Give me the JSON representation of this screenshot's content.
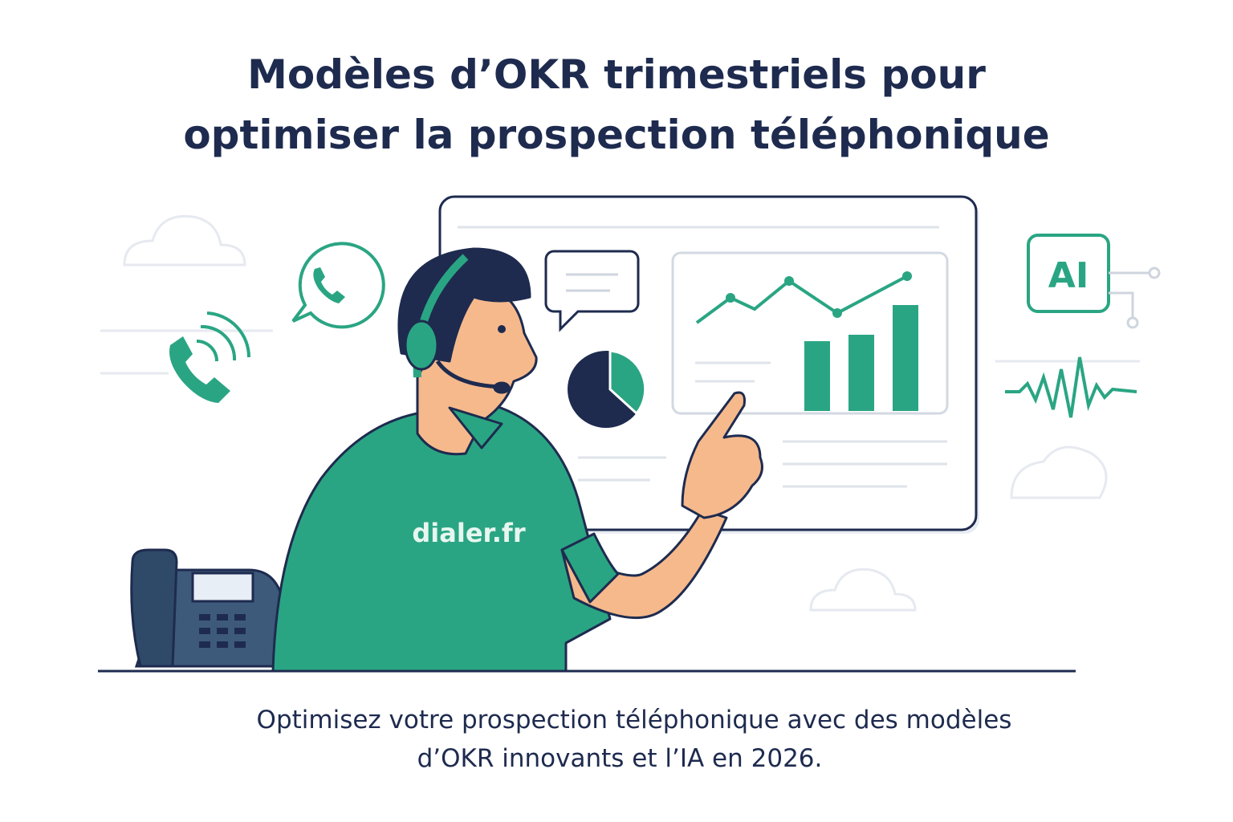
{
  "header": {
    "title_lines": [
      "Modèles d’OKR trimestriels pour",
      "optimiser la prospection téléphonique"
    ]
  },
  "illustration": {
    "shirt_logo": "dialer.fr",
    "ai_badge": "AI"
  },
  "footer": {
    "caption_lines": [
      "Optimisez votre prospection téléphonique avec des modèles",
      "d’OKR innovants et l’IA en 2026."
    ]
  }
}
